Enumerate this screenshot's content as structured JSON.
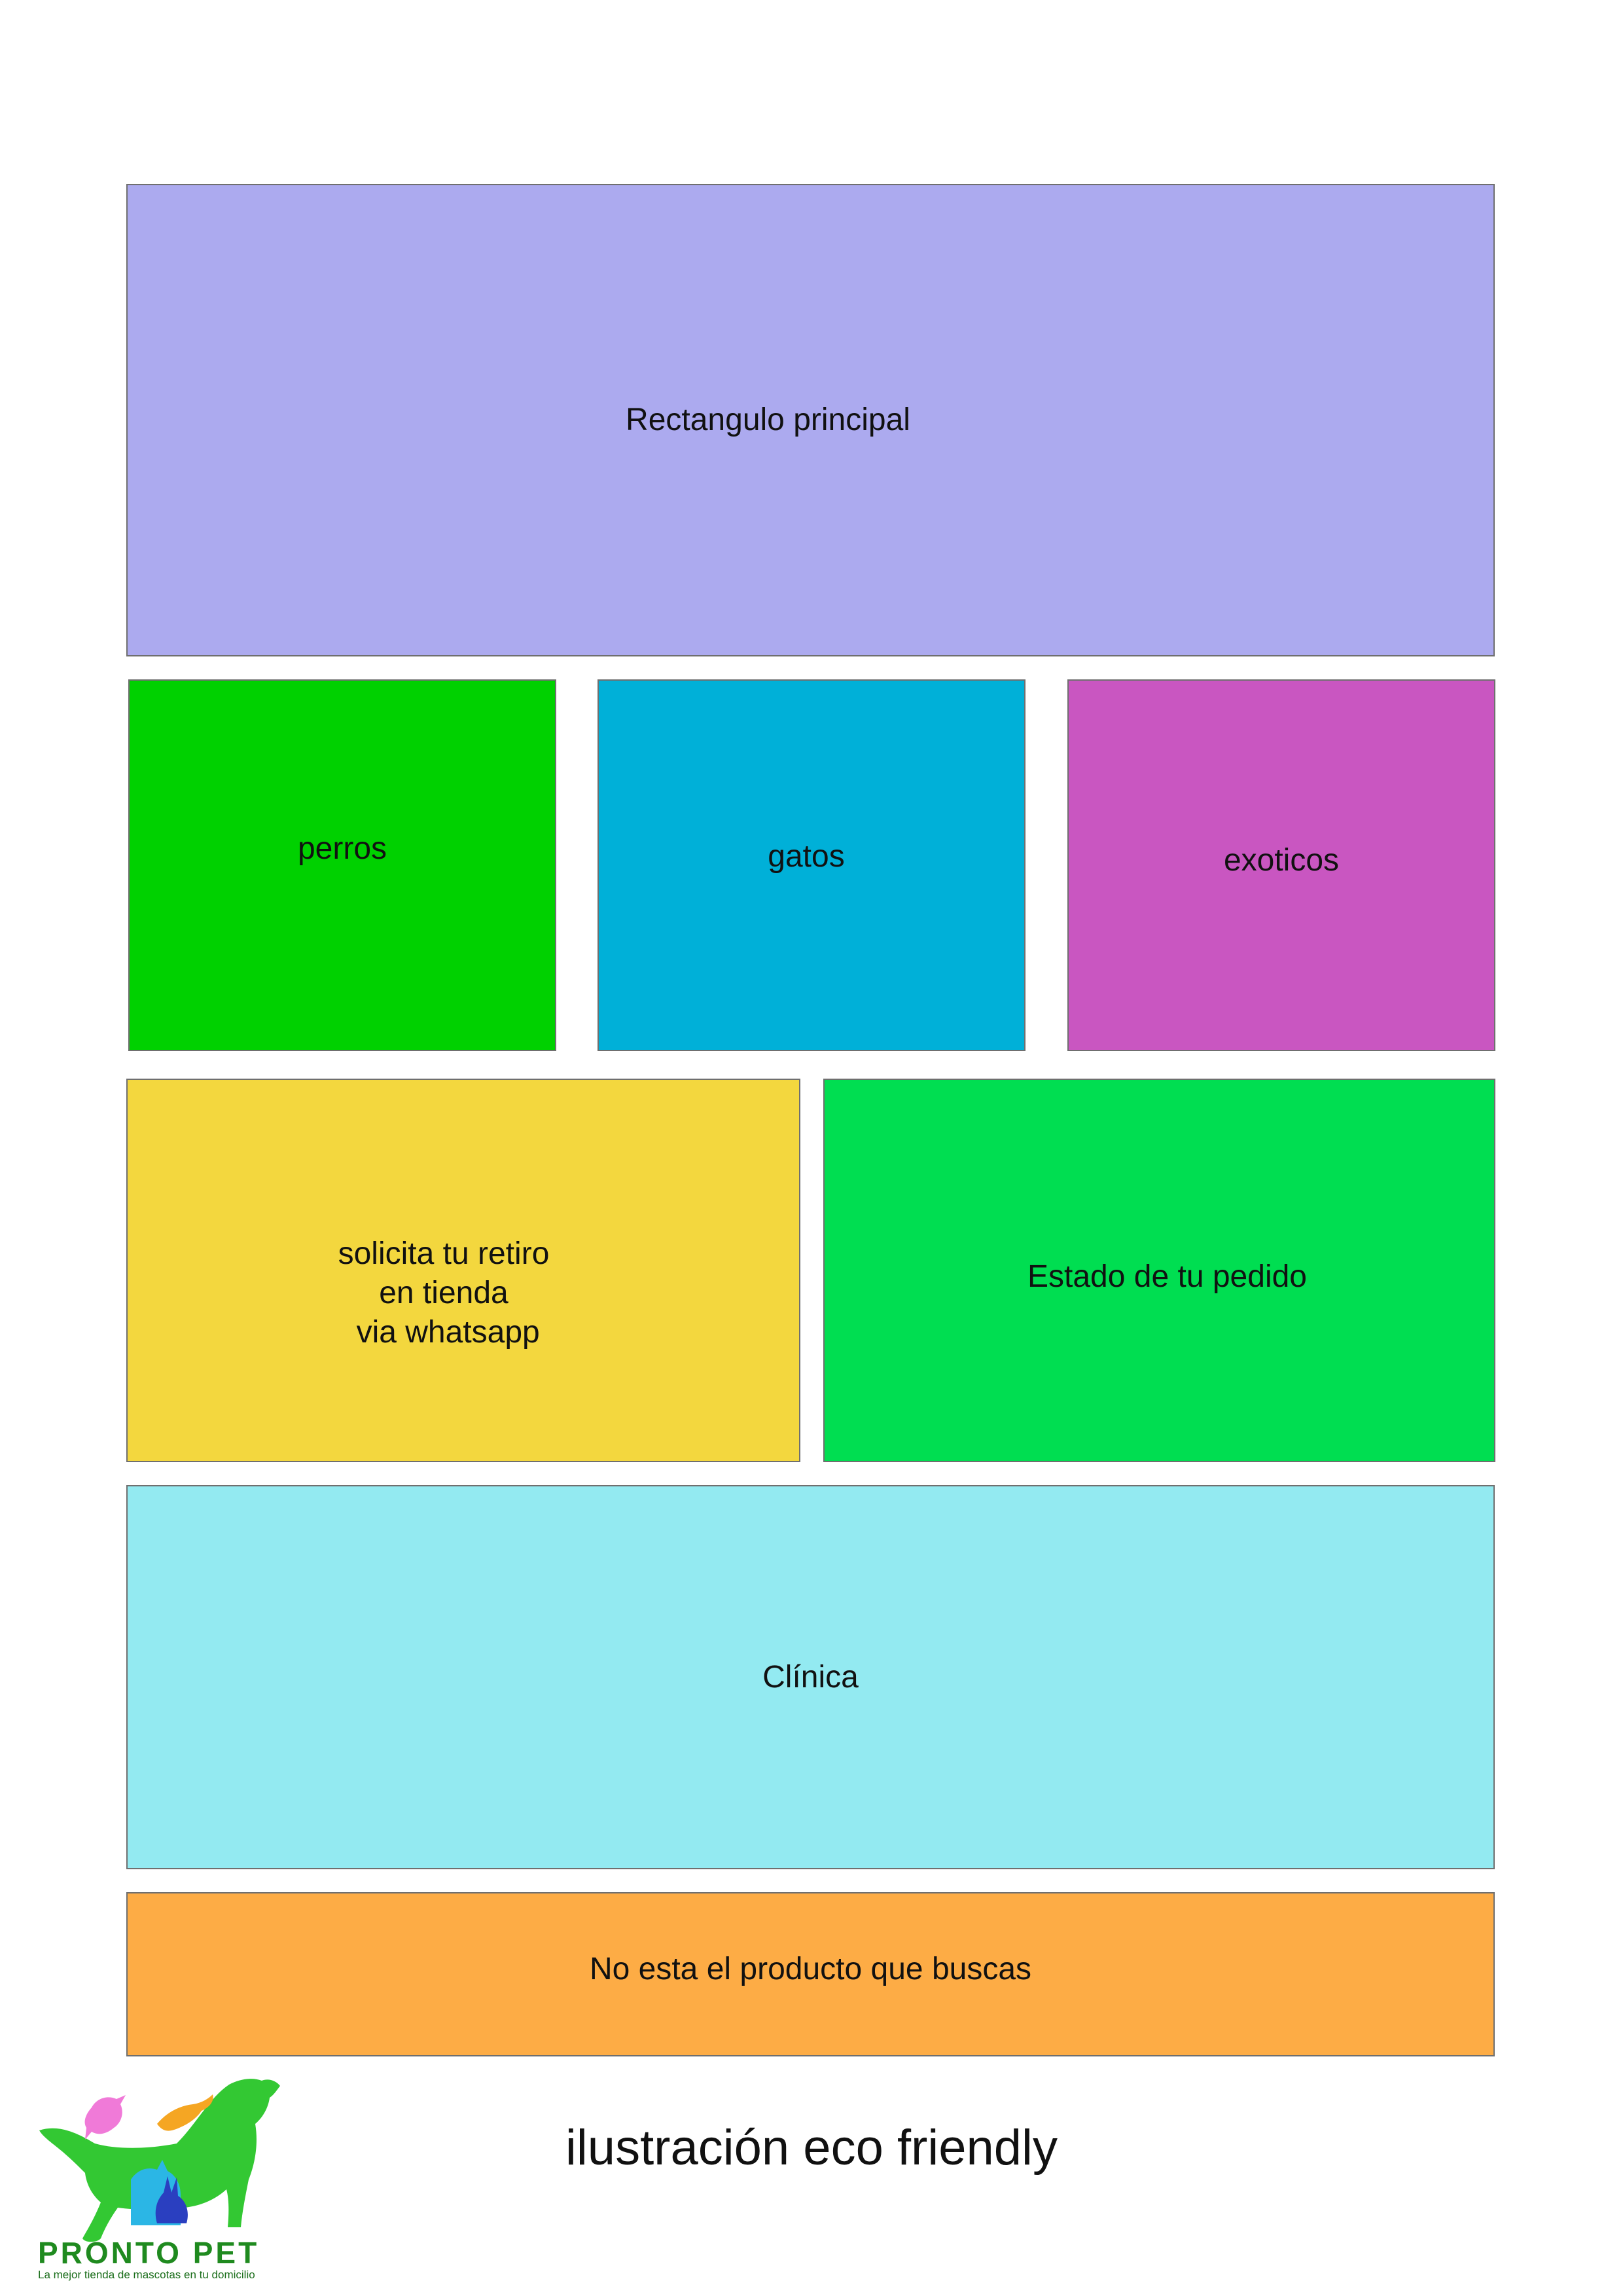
{
  "layout": {
    "hero": {
      "label": "Rectangulo principal",
      "color": "#ACAAEF"
    },
    "categories": [
      {
        "label": "perros",
        "color": "#00D100"
      },
      {
        "label": "gatos",
        "color": "#00B0D8"
      },
      {
        "label": "exoticos",
        "color": "#C956C1"
      }
    ],
    "retiro": {
      "lines": [
        "solicita tu retiro",
        "en tienda",
        " via whatsapp"
      ],
      "color": "#F3D73E"
    },
    "estado": {
      "label": "Estado de tu pedido",
      "color": "#00DE51"
    },
    "clinica": {
      "label": "Clínica",
      "color": "#93EAF1"
    },
    "no_esta": {
      "label": "No esta el producto que buscas",
      "color": "#FDAC45"
    },
    "footer_text": "ilustración eco friendly"
  },
  "brand": {
    "name": "PRONTO PET",
    "tagline": "La mejor tienda de mascotas en tu domicilio",
    "colors": {
      "green": "#33C833",
      "dark_green": "#1F8A1F",
      "pink": "#F07AD8",
      "orange": "#F5A623",
      "cyan": "#2BB6E5",
      "blue": "#2A3FC0"
    },
    "logo_icons": [
      "dog-icon",
      "bird-icon",
      "lizard-icon",
      "cat-icon",
      "rabbit-icon"
    ]
  }
}
